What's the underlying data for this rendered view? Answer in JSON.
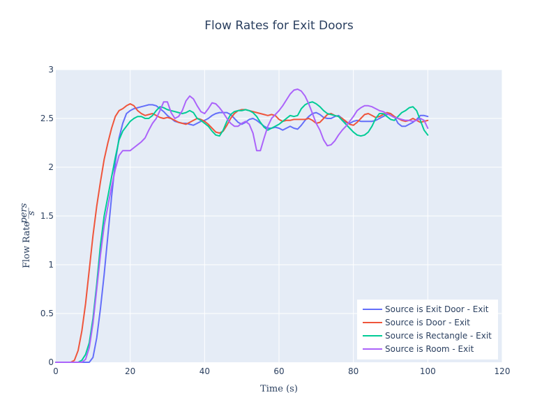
{
  "chart_data": {
    "type": "line",
    "title": "Flow Rates for Exit Doors",
    "xlabel": "Time (s)",
    "ylabel": "Flow Rate",
    "ylabel_unit_num": "pers",
    "ylabel_unit_den": "s",
    "xlim": [
      0,
      120
    ],
    "ylim": [
      0,
      3
    ],
    "x_ticks": [
      0,
      20,
      40,
      60,
      80,
      100,
      120
    ],
    "y_ticks": [
      0,
      0.5,
      1,
      1.5,
      2,
      2.5,
      3
    ],
    "grid": true,
    "legend_position": "bottom-right",
    "series": [
      {
        "name": "Source is Exit Door - Exit",
        "color": "#636efa",
        "x": [
          0,
          5,
          8,
          9,
          10,
          11,
          12,
          13,
          14,
          15,
          16,
          17,
          18,
          19,
          20,
          21,
          22,
          23,
          24,
          25,
          26,
          27,
          28,
          29,
          30,
          31,
          32,
          33,
          34,
          35,
          36,
          37,
          38,
          39,
          40,
          41,
          42,
          43,
          44,
          45,
          46,
          47,
          48,
          49,
          50,
          51,
          52,
          53,
          54,
          55,
          56,
          57,
          58,
          59,
          60,
          61,
          62,
          63,
          64,
          65,
          66,
          67,
          68,
          69,
          70,
          71,
          72,
          73,
          74,
          75,
          76,
          77,
          78,
          79,
          80,
          81,
          82,
          83,
          84,
          85,
          86,
          87,
          88,
          89,
          90,
          91,
          92,
          93,
          94,
          95,
          96,
          97,
          98,
          99,
          100
        ],
        "y": [
          0,
          0,
          0,
          0,
          0.05,
          0.25,
          0.55,
          0.9,
          1.3,
          1.7,
          2.05,
          2.3,
          2.45,
          2.55,
          2.58,
          2.6,
          2.61,
          2.62,
          2.63,
          2.64,
          2.64,
          2.63,
          2.6,
          2.57,
          2.53,
          2.5,
          2.47,
          2.46,
          2.45,
          2.45,
          2.44,
          2.43,
          2.45,
          2.47,
          2.48,
          2.5,
          2.53,
          2.55,
          2.56,
          2.56,
          2.56,
          2.54,
          2.5,
          2.46,
          2.44,
          2.46,
          2.49,
          2.5,
          2.48,
          2.45,
          2.42,
          2.4,
          2.4,
          2.41,
          2.4,
          2.38,
          2.4,
          2.42,
          2.4,
          2.39,
          2.43,
          2.48,
          2.52,
          2.55,
          2.56,
          2.54,
          2.51,
          2.5,
          2.5,
          2.52,
          2.53,
          2.5,
          2.46,
          2.45,
          2.47,
          2.48,
          2.47,
          2.47,
          2.47,
          2.47,
          2.48,
          2.5,
          2.52,
          2.54,
          2.55,
          2.52,
          2.45,
          2.42,
          2.42,
          2.44,
          2.46,
          2.49,
          2.53,
          2.53,
          2.52
        ]
      },
      {
        "name": "Source is Door - Exit",
        "color": "#ef553b",
        "x": [
          0,
          4,
          5,
          6,
          7,
          8,
          9,
          10,
          11,
          12,
          13,
          14,
          15,
          16,
          17,
          18,
          19,
          20,
          21,
          22,
          23,
          24,
          25,
          26,
          27,
          28,
          29,
          30,
          31,
          32,
          33,
          34,
          35,
          36,
          37,
          38,
          39,
          40,
          41,
          42,
          43,
          44,
          45,
          46,
          47,
          48,
          49,
          50,
          51,
          52,
          53,
          54,
          55,
          56,
          57,
          58,
          59,
          60,
          61,
          62,
          63,
          64,
          65,
          66,
          67,
          68,
          69,
          70,
          71,
          72,
          73,
          74,
          75,
          76,
          77,
          78,
          79,
          80,
          81,
          82,
          83,
          84,
          85,
          86,
          87,
          88,
          89,
          90,
          91,
          92,
          93,
          94,
          95,
          96,
          97,
          98,
          99,
          100
        ],
        "y": [
          0,
          0,
          0.02,
          0.12,
          0.32,
          0.6,
          0.95,
          1.3,
          1.6,
          1.85,
          2.08,
          2.25,
          2.4,
          2.52,
          2.58,
          2.6,
          2.63,
          2.65,
          2.63,
          2.58,
          2.55,
          2.53,
          2.54,
          2.55,
          2.53,
          2.51,
          2.5,
          2.51,
          2.5,
          2.48,
          2.46,
          2.45,
          2.44,
          2.46,
          2.48,
          2.5,
          2.49,
          2.47,
          2.44,
          2.4,
          2.36,
          2.35,
          2.37,
          2.43,
          2.5,
          2.55,
          2.58,
          2.59,
          2.59,
          2.58,
          2.57,
          2.56,
          2.55,
          2.54,
          2.53,
          2.54,
          2.53,
          2.49,
          2.47,
          2.48,
          2.48,
          2.49,
          2.49,
          2.49,
          2.49,
          2.5,
          2.48,
          2.45,
          2.46,
          2.5,
          2.54,
          2.55,
          2.53,
          2.52,
          2.5,
          2.47,
          2.44,
          2.43,
          2.46,
          2.5,
          2.54,
          2.55,
          2.53,
          2.51,
          2.52,
          2.54,
          2.56,
          2.55,
          2.52,
          2.5,
          2.48,
          2.47,
          2.48,
          2.5,
          2.48,
          2.46,
          2.47,
          2.48
        ]
      },
      {
        "name": "Source is Rectangle - Exit",
        "color": "#00cc96",
        "x": [
          0,
          6,
          7,
          8,
          9,
          10,
          11,
          12,
          13,
          14,
          15,
          16,
          17,
          18,
          19,
          20,
          21,
          22,
          23,
          24,
          25,
          26,
          27,
          28,
          29,
          30,
          31,
          32,
          33,
          34,
          35,
          36,
          37,
          38,
          39,
          40,
          41,
          42,
          43,
          44,
          45,
          46,
          47,
          48,
          49,
          50,
          51,
          52,
          53,
          54,
          55,
          56,
          57,
          58,
          59,
          60,
          61,
          62,
          63,
          64,
          65,
          66,
          67,
          68,
          69,
          70,
          71,
          72,
          73,
          74,
          75,
          76,
          77,
          78,
          79,
          80,
          81,
          82,
          83,
          84,
          85,
          86,
          87,
          88,
          89,
          90,
          91,
          92,
          93,
          94,
          95,
          96,
          97,
          98,
          99,
          100
        ],
        "y": [
          0,
          0,
          0.02,
          0.08,
          0.2,
          0.45,
          0.8,
          1.2,
          1.5,
          1.7,
          1.9,
          2.1,
          2.28,
          2.37,
          2.42,
          2.47,
          2.5,
          2.52,
          2.52,
          2.5,
          2.5,
          2.53,
          2.58,
          2.62,
          2.61,
          2.59,
          2.58,
          2.57,
          2.56,
          2.55,
          2.56,
          2.58,
          2.56,
          2.5,
          2.48,
          2.45,
          2.42,
          2.37,
          2.33,
          2.32,
          2.38,
          2.47,
          2.54,
          2.57,
          2.58,
          2.58,
          2.59,
          2.58,
          2.56,
          2.52,
          2.46,
          2.41,
          2.38,
          2.4,
          2.42,
          2.44,
          2.47,
          2.5,
          2.53,
          2.52,
          2.53,
          2.6,
          2.64,
          2.66,
          2.67,
          2.65,
          2.62,
          2.58,
          2.55,
          2.54,
          2.53,
          2.52,
          2.48,
          2.44,
          2.4,
          2.36,
          2.33,
          2.32,
          2.33,
          2.36,
          2.42,
          2.5,
          2.55,
          2.55,
          2.52,
          2.49,
          2.48,
          2.52,
          2.56,
          2.58,
          2.61,
          2.62,
          2.58,
          2.48,
          2.38,
          2.33
        ]
      },
      {
        "name": "Source is Room - Exit",
        "color": "#ab63fa",
        "x": [
          0,
          7,
          8,
          9,
          10,
          11,
          12,
          13,
          14,
          15,
          16,
          17,
          18,
          19,
          20,
          21,
          22,
          23,
          24,
          25,
          26,
          27,
          28,
          29,
          30,
          31,
          32,
          33,
          34,
          35,
          36,
          37,
          38,
          39,
          40,
          41,
          42,
          43,
          44,
          45,
          46,
          47,
          48,
          49,
          50,
          51,
          52,
          53,
          54,
          55,
          56,
          57,
          58,
          59,
          60,
          61,
          62,
          63,
          64,
          65,
          66,
          67,
          68,
          69,
          70,
          71,
          72,
          73,
          74,
          75,
          76,
          77,
          78,
          79,
          80,
          81,
          82,
          83,
          84,
          85,
          86,
          87,
          88,
          89,
          90,
          91,
          92,
          93,
          94,
          95,
          96,
          97,
          98,
          99,
          100
        ],
        "y": [
          0,
          0,
          0.03,
          0.15,
          0.4,
          0.75,
          1.1,
          1.4,
          1.6,
          1.8,
          1.98,
          2.12,
          2.17,
          2.17,
          2.17,
          2.2,
          2.23,
          2.26,
          2.3,
          2.38,
          2.45,
          2.5,
          2.58,
          2.67,
          2.67,
          2.56,
          2.5,
          2.52,
          2.58,
          2.68,
          2.73,
          2.7,
          2.63,
          2.57,
          2.55,
          2.6,
          2.66,
          2.65,
          2.61,
          2.56,
          2.5,
          2.45,
          2.42,
          2.42,
          2.45,
          2.47,
          2.44,
          2.35,
          2.17,
          2.17,
          2.3,
          2.42,
          2.5,
          2.54,
          2.58,
          2.63,
          2.69,
          2.75,
          2.79,
          2.8,
          2.78,
          2.73,
          2.65,
          2.55,
          2.45,
          2.38,
          2.28,
          2.22,
          2.23,
          2.27,
          2.33,
          2.38,
          2.42,
          2.47,
          2.52,
          2.58,
          2.61,
          2.63,
          2.63,
          2.62,
          2.6,
          2.58,
          2.57,
          2.55,
          2.53,
          2.51,
          2.5,
          2.49,
          2.48,
          2.48,
          2.47,
          2.48,
          2.5,
          2.48,
          2.4
        ]
      }
    ]
  }
}
